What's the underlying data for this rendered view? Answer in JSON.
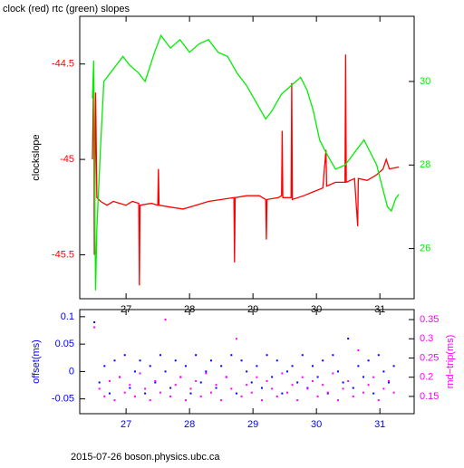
{
  "chart_data": [
    {
      "type": "line",
      "title": "clock (red) rtc (green) slopes",
      "y_label": "clockslope",
      "y_label_color": "#000000",
      "xlim": [
        26.27,
        31.54
      ],
      "xticks": [
        27,
        28,
        29,
        30,
        31
      ],
      "ylim": [
        -45.73,
        -44.25
      ],
      "yticks": [
        -44.5,
        -45,
        -45.5
      ],
      "y2lim": [
        24.8,
        31.56
      ],
      "y2ticks": [
        26,
        28,
        30
      ],
      "series": [
        {
          "color": "#ff0000",
          "x": [
            26.47,
            26.49,
            26.5,
            26.52,
            26.54,
            26.6,
            26.7,
            26.8,
            26.9,
            27.0,
            27.1,
            27.2,
            27.21,
            27.22,
            27.4,
            27.5,
            27.51,
            27.52,
            27.7,
            27.9,
            28.1,
            28.3,
            28.5,
            28.7,
            28.71,
            28.72,
            28.9,
            29.1,
            29.2,
            29.21,
            29.22,
            29.4,
            29.45,
            29.46,
            29.47,
            29.6,
            29.61,
            29.62,
            29.8,
            29.95,
            30.1,
            30.15,
            30.16,
            30.3,
            30.45,
            30.46,
            30.47,
            30.6,
            30.65,
            30.66,
            30.8,
            30.95,
            31.05,
            31.1,
            31.15,
            31.3
          ],
          "values": [
            -45.0,
            -44.55,
            -45.5,
            -44.65,
            -45.2,
            -45.22,
            -45.24,
            -45.22,
            -45.23,
            -45.24,
            -45.22,
            -45.23,
            -45.66,
            -45.24,
            -45.23,
            -45.24,
            -45.05,
            -45.24,
            -45.25,
            -45.26,
            -45.24,
            -45.22,
            -45.21,
            -45.2,
            -45.54,
            -45.2,
            -45.19,
            -45.19,
            -45.21,
            -45.42,
            -45.21,
            -45.2,
            -45.19,
            -44.85,
            -45.2,
            -45.2,
            -44.6,
            -45.21,
            -45.19,
            -45.17,
            -45.15,
            -44.95,
            -45.14,
            -45.12,
            -45.12,
            -44.45,
            -45.12,
            -45.1,
            -45.35,
            -45.1,
            -45.11,
            -45.08,
            -45.05,
            -45.0,
            -45.05,
            -45.04
          ]
        },
        {
          "color": "#00ee00",
          "axis": "y2",
          "x": [
            26.47,
            26.49,
            26.5,
            26.52,
            26.54,
            26.6,
            26.65,
            26.8,
            26.95,
            27.05,
            27.2,
            27.3,
            27.45,
            27.55,
            27.7,
            27.85,
            28.0,
            28.15,
            28.3,
            28.45,
            28.6,
            28.75,
            28.9,
            29.05,
            29.2,
            29.3,
            29.45,
            29.6,
            29.75,
            29.85,
            29.95,
            30.05,
            30.15,
            30.3,
            30.45,
            30.55,
            30.65,
            30.75,
            30.85,
            30.95,
            31.05,
            31.12,
            31.18,
            31.25,
            31.3
          ],
          "values": [
            29.6,
            30.5,
            28.0,
            25.0,
            26.5,
            28.5,
            30.0,
            30.3,
            30.6,
            30.4,
            30.2,
            30.0,
            30.7,
            31.1,
            30.8,
            31.0,
            30.7,
            30.9,
            31.0,
            30.7,
            30.6,
            30.2,
            29.9,
            29.5,
            29.1,
            29.3,
            29.7,
            29.9,
            30.1,
            29.8,
            29.3,
            28.6,
            28.3,
            27.9,
            28.0,
            28.2,
            28.4,
            28.6,
            28.3,
            28.0,
            27.4,
            27.0,
            26.9,
            27.2,
            27.3
          ]
        }
      ]
    },
    {
      "type": "scatter",
      "y_label": "offset(ms)",
      "y_label_color": "#0000ff",
      "y2_label": "rnd−trip(ms)",
      "y2_label_color": "#ff00ff",
      "xlim": [
        26.27,
        31.54
      ],
      "xticks": [
        27,
        28,
        29,
        30,
        31
      ],
      "ylim": [
        -0.077,
        0.113
      ],
      "yticks": [
        0.1,
        0.05,
        0,
        -0.05
      ],
      "y2lim": [
        0.105,
        0.376
      ],
      "y2ticks": [
        0.35,
        0.3,
        0.25,
        0.2,
        0.15
      ],
      "x": [
        26.5,
        26.58,
        26.66,
        26.74,
        26.82,
        26.9,
        26.98,
        27.06,
        27.14,
        27.22,
        27.3,
        27.38,
        27.46,
        27.54,
        27.62,
        27.7,
        27.78,
        27.86,
        27.94,
        28.02,
        28.1,
        28.18,
        28.26,
        28.34,
        28.42,
        28.5,
        28.58,
        28.66,
        28.74,
        28.82,
        28.9,
        28.98,
        29.06,
        29.14,
        29.22,
        29.3,
        29.38,
        29.46,
        29.54,
        29.62,
        29.7,
        29.78,
        29.86,
        29.94,
        30.02,
        30.1,
        30.18,
        30.26,
        30.34,
        30.42,
        30.5,
        30.58,
        30.66,
        30.74,
        30.82,
        30.9,
        30.98,
        31.06,
        31.14,
        31.22
      ],
      "series": [
        {
          "color": "#0000ff",
          "values": [
            0.09,
            -0.02,
            0.01,
            -0.04,
            0.02,
            -0.01,
            0.03,
            -0.03,
            0,
            0.02,
            -0.04,
            0.01,
            -0.02,
            0.03,
            0,
            -0.03,
            0.02,
            -0.01,
            0.01,
            -0.04,
            0.03,
            -0.02,
            0,
            0.02,
            -0.03,
            0.01,
            -0.01,
            0.03,
            -0.04,
            0.02,
            0,
            -0.02,
            0.01,
            -0.03,
            0.03,
            -0.01,
            0.02,
            -0.04,
            0,
            0.01,
            -0.02,
            0.03,
            -0.03,
            0.01,
            -0.01,
            0.02,
            -0.04,
            0.03,
            0,
            -0.02,
            0.06,
            -0.03,
            0.01,
            -0.01,
            0.02,
            -0.04,
            0.03,
            0,
            -0.02,
            0.01
          ]
        },
        {
          "color": "#ff00ff",
          "axis": "y2",
          "values": [
            0.33,
            0.17,
            0.15,
            0.19,
            0.14,
            0.2,
            0.16,
            0.18,
            0.15,
            0.21,
            0.17,
            0.14,
            0.19,
            0.16,
            0.35,
            0.15,
            0.18,
            0.2,
            0.14,
            0.17,
            0.19,
            0.15,
            0.21,
            0.16,
            0.18,
            0.14,
            0.2,
            0.17,
            0.3,
            0.15,
            0.18,
            0.16,
            0.2,
            0.14,
            0.19,
            0.17,
            0.15,
            0.21,
            0.16,
            0.18,
            0.14,
            0.2,
            0.17,
            0.19,
            0.15,
            0.18,
            0.16,
            0.21,
            0.14,
            0.17,
            0.19,
            0.15,
            0.27,
            0.16,
            0.18,
            0.2,
            0.14,
            0.17,
            0.19,
            0.16
          ]
        }
      ]
    }
  ],
  "footer": "2015-07-26 boson.physics.ubc.ca"
}
